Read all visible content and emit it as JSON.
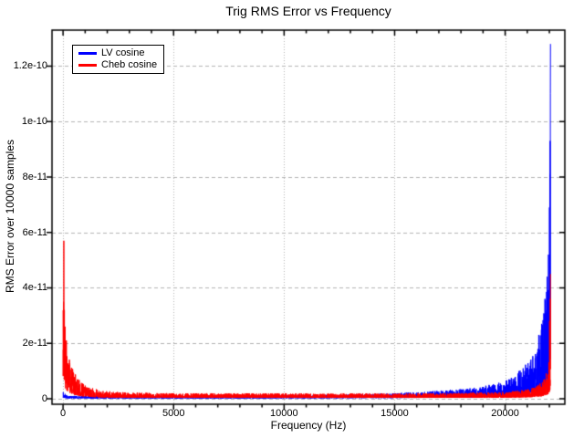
{
  "chart_data": {
    "type": "line",
    "title": "Trig RMS Error vs Frequency",
    "xlabel": "Frequency (Hz)",
    "ylabel": "RMS Error over 10000 samples",
    "xlim": [
      -500,
      22700
    ],
    "ylim": [
      -2e-12,
      1.33e-10
    ],
    "grid": {
      "horizontal": "dashed",
      "vertical": "dotted",
      "color": "#b4b4b4"
    },
    "axis_color": "#000000",
    "background": "#ffffff",
    "x_ticks": [
      {
        "value": 0,
        "label": "0"
      },
      {
        "value": 5000,
        "label": "5000"
      },
      {
        "value": 10000,
        "label": "10000"
      },
      {
        "value": 15000,
        "label": "15000"
      },
      {
        "value": 20000,
        "label": "20000"
      }
    ],
    "x_minor_step": 1000,
    "x_minor_max": 22000,
    "y_ticks": [
      {
        "value": 0,
        "label": "0"
      },
      {
        "value": 2e-11,
        "label": "2e-11"
      },
      {
        "value": 4e-11,
        "label": "4e-11"
      },
      {
        "value": 6e-11,
        "label": "6e-11"
      },
      {
        "value": 8e-11,
        "label": "8e-11"
      },
      {
        "value": 1e-10,
        "label": "1e-10"
      },
      {
        "value": 1.2e-10,
        "label": "1.2e-10"
      }
    ],
    "legend": {
      "position": "top-left",
      "entries": [
        {
          "label": "LV cosine",
          "color": "#0000ff"
        },
        {
          "label": "Cheb cosine",
          "color": "#ff0000"
        }
      ]
    },
    "series": [
      {
        "name": "LV cosine",
        "color": "#0000ff",
        "x_start": 0,
        "x_end": 22050,
        "step": 5,
        "seed": 7,
        "noise_floor": 0.12,
        "envelope": [
          [
            0,
            2.5e-12
          ],
          [
            200,
            1e-12
          ],
          [
            2000,
            1e-12
          ],
          [
            8000,
            1.2e-12
          ],
          [
            12000,
            1.5e-12
          ],
          [
            15000,
            2e-12
          ],
          [
            16500,
            2.6e-12
          ],
          [
            18000,
            3.5e-12
          ],
          [
            19000,
            4.5e-12
          ],
          [
            20000,
            6.5e-12
          ],
          [
            20500,
            9e-12
          ],
          [
            21000,
            1.3e-11
          ],
          [
            21400,
            1.9e-11
          ],
          [
            21700,
            2.8e-11
          ],
          [
            21900,
            4.2e-11
          ],
          [
            22000,
            5.8e-11
          ],
          [
            22050,
            6.8e-11
          ]
        ],
        "spikes": [
          [
            21520,
            2.3e-11
          ],
          [
            21650,
            2.7e-11
          ],
          [
            21800,
            3.6e-11
          ],
          [
            21900,
            4.4e-11
          ],
          [
            21960,
            5.2e-11
          ],
          [
            22005,
            6.9e-11
          ],
          [
            22020,
            8.1e-11
          ],
          [
            22035,
            9.3e-11
          ],
          [
            22045,
            1.1e-10
          ],
          [
            22050,
            1.28e-10
          ]
        ]
      },
      {
        "name": "Cheb cosine",
        "color": "#ff0000",
        "x_start": 0,
        "x_end": 22050,
        "step": 5,
        "seed": 3,
        "noise_floor": 0.15,
        "envelope": [
          [
            0,
            5.4e-11
          ],
          [
            40,
            5.4e-11
          ],
          [
            70,
            3.3e-11
          ],
          [
            120,
            2.4e-11
          ],
          [
            200,
            1.8e-11
          ],
          [
            300,
            1.4e-11
          ],
          [
            450,
            1.05e-11
          ],
          [
            650,
            7.5e-12
          ],
          [
            900,
            5.5e-12
          ],
          [
            1200,
            4.2e-12
          ],
          [
            1600,
            3.2e-12
          ],
          [
            2200,
            2.6e-12
          ],
          [
            3000,
            2.2e-12
          ],
          [
            5000,
            2e-12
          ],
          [
            12000,
            1.9e-12
          ],
          [
            17000,
            2e-12
          ],
          [
            19500,
            2.3e-12
          ],
          [
            20500,
            2.8e-12
          ],
          [
            21200,
            3.8e-12
          ],
          [
            21700,
            6e-12
          ],
          [
            21950,
            1.1e-11
          ],
          [
            22050,
            2.4e-11
          ]
        ],
        "spikes": [
          [
            35,
            5.7e-11
          ],
          [
            60,
            3.2e-11
          ],
          [
            90,
            2.6e-11
          ],
          [
            150,
            2.1e-11
          ],
          [
            22010,
            2.8e-11
          ],
          [
            22040,
            3.6e-11
          ],
          [
            22050,
            4.5e-11
          ]
        ]
      }
    ]
  }
}
